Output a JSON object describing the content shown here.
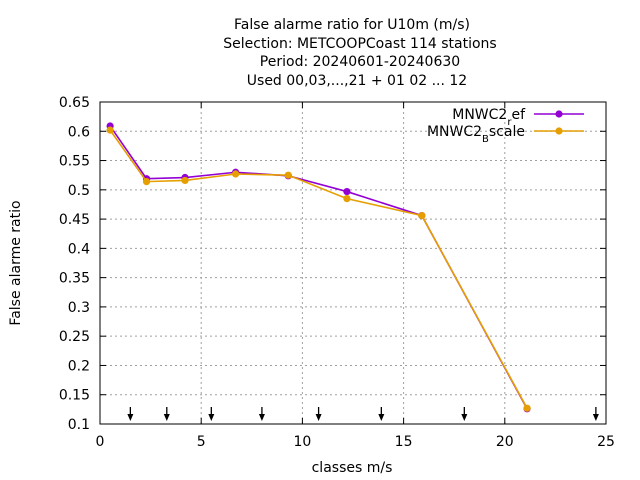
{
  "chart_data": {
    "type": "line",
    "title_lines": [
      "False alarme ratio  for U10m (m/s)",
      "Selection: METCOOPCoast    114 stations",
      "Period: 20240601-20240630",
      "Used 00,03,...,21 + 01 02 ... 12"
    ],
    "xlabel": "classes m/s",
    "ylabel": "False alarme ratio",
    "xlim": [
      0,
      25
    ],
    "ylim": [
      0.1,
      0.65
    ],
    "x_ticks": [
      0,
      5,
      10,
      15,
      20,
      25
    ],
    "y_ticks": [
      0.1,
      0.15,
      0.2,
      0.25,
      0.3,
      0.35,
      0.4,
      0.45,
      0.5,
      0.55,
      0.6,
      0.65
    ],
    "grid": true,
    "legend_position": "top-right",
    "series": [
      {
        "name_main": "MNWC2",
        "name_sub": "r",
        "name_rest": "ef",
        "color": "#9400d3",
        "x": [
          0.5,
          2.3,
          4.2,
          6.7,
          9.3,
          12.2,
          15.9,
          21.1
        ],
        "y": [
          0.609,
          0.519,
          0.521,
          0.53,
          0.524,
          0.497,
          0.456,
          0.126
        ]
      },
      {
        "name_main": "MNWC2",
        "name_sub": "B",
        "name_rest": "scale",
        "color": "#e69f00",
        "x": [
          0.5,
          2.3,
          4.2,
          6.7,
          9.3,
          12.2,
          15.9,
          21.1
        ],
        "y": [
          0.602,
          0.514,
          0.516,
          0.527,
          0.525,
          0.485,
          0.456,
          0.127
        ]
      }
    ],
    "class_markers_x": [
      1.5,
      3.3,
      5.5,
      8.0,
      10.8,
      13.9,
      18.0,
      24.5
    ]
  }
}
